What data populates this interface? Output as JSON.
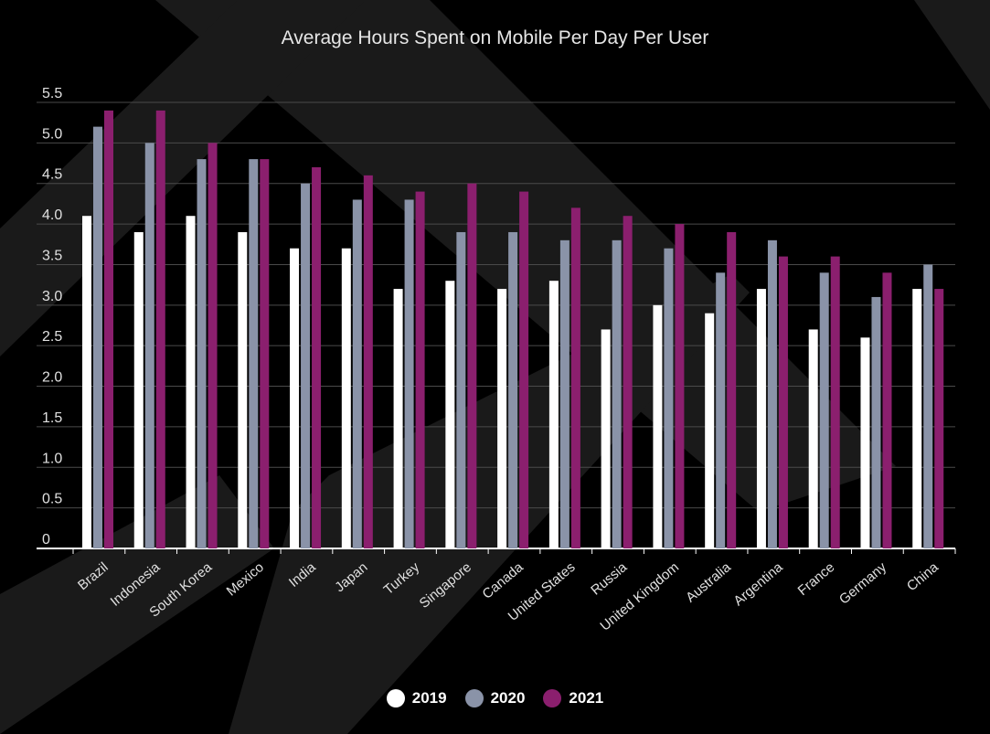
{
  "chart_data": {
    "type": "bar",
    "title": "Average Hours Spent on Mobile Per Day Per User",
    "xlabel": "",
    "ylabel": "",
    "ylim": [
      0,
      5.5
    ],
    "yticks": [
      "0",
      "0.5",
      "1.0",
      "1.5",
      "2.0",
      "2.5",
      "3.0",
      "3.5",
      "4.0",
      "4.5",
      "5.0",
      "5.5"
    ],
    "grid": true,
    "legend_position": "bottom",
    "categories": [
      "Brazil",
      "Indonesia",
      "South Korea",
      "Mexico",
      "India",
      "Japan",
      "Turkey",
      "Singapore",
      "Canada",
      "United States",
      "Russia",
      "United Kingdom",
      "Australia",
      "Argentina",
      "France",
      "Germany",
      "China"
    ],
    "series": [
      {
        "name": "2019",
        "color": "#ffffff",
        "values": [
          4.1,
          3.9,
          4.1,
          3.9,
          3.7,
          3.7,
          3.2,
          3.3,
          3.2,
          3.3,
          2.7,
          3.0,
          2.9,
          3.2,
          2.7,
          2.6,
          3.2
        ]
      },
      {
        "name": "2020",
        "color": "#8a93a8",
        "values": [
          5.2,
          5.0,
          4.8,
          4.8,
          4.5,
          4.3,
          4.3,
          3.9,
          3.9,
          3.8,
          3.8,
          3.7,
          3.4,
          3.8,
          3.4,
          3.1,
          3.5
        ]
      },
      {
        "name": "2021",
        "color": "#8b1f6e",
        "values": [
          5.4,
          5.4,
          5.0,
          4.8,
          4.7,
          4.6,
          4.4,
          4.5,
          4.4,
          4.2,
          4.1,
          4.0,
          3.9,
          3.6,
          3.6,
          3.4,
          3.2
        ]
      }
    ]
  }
}
